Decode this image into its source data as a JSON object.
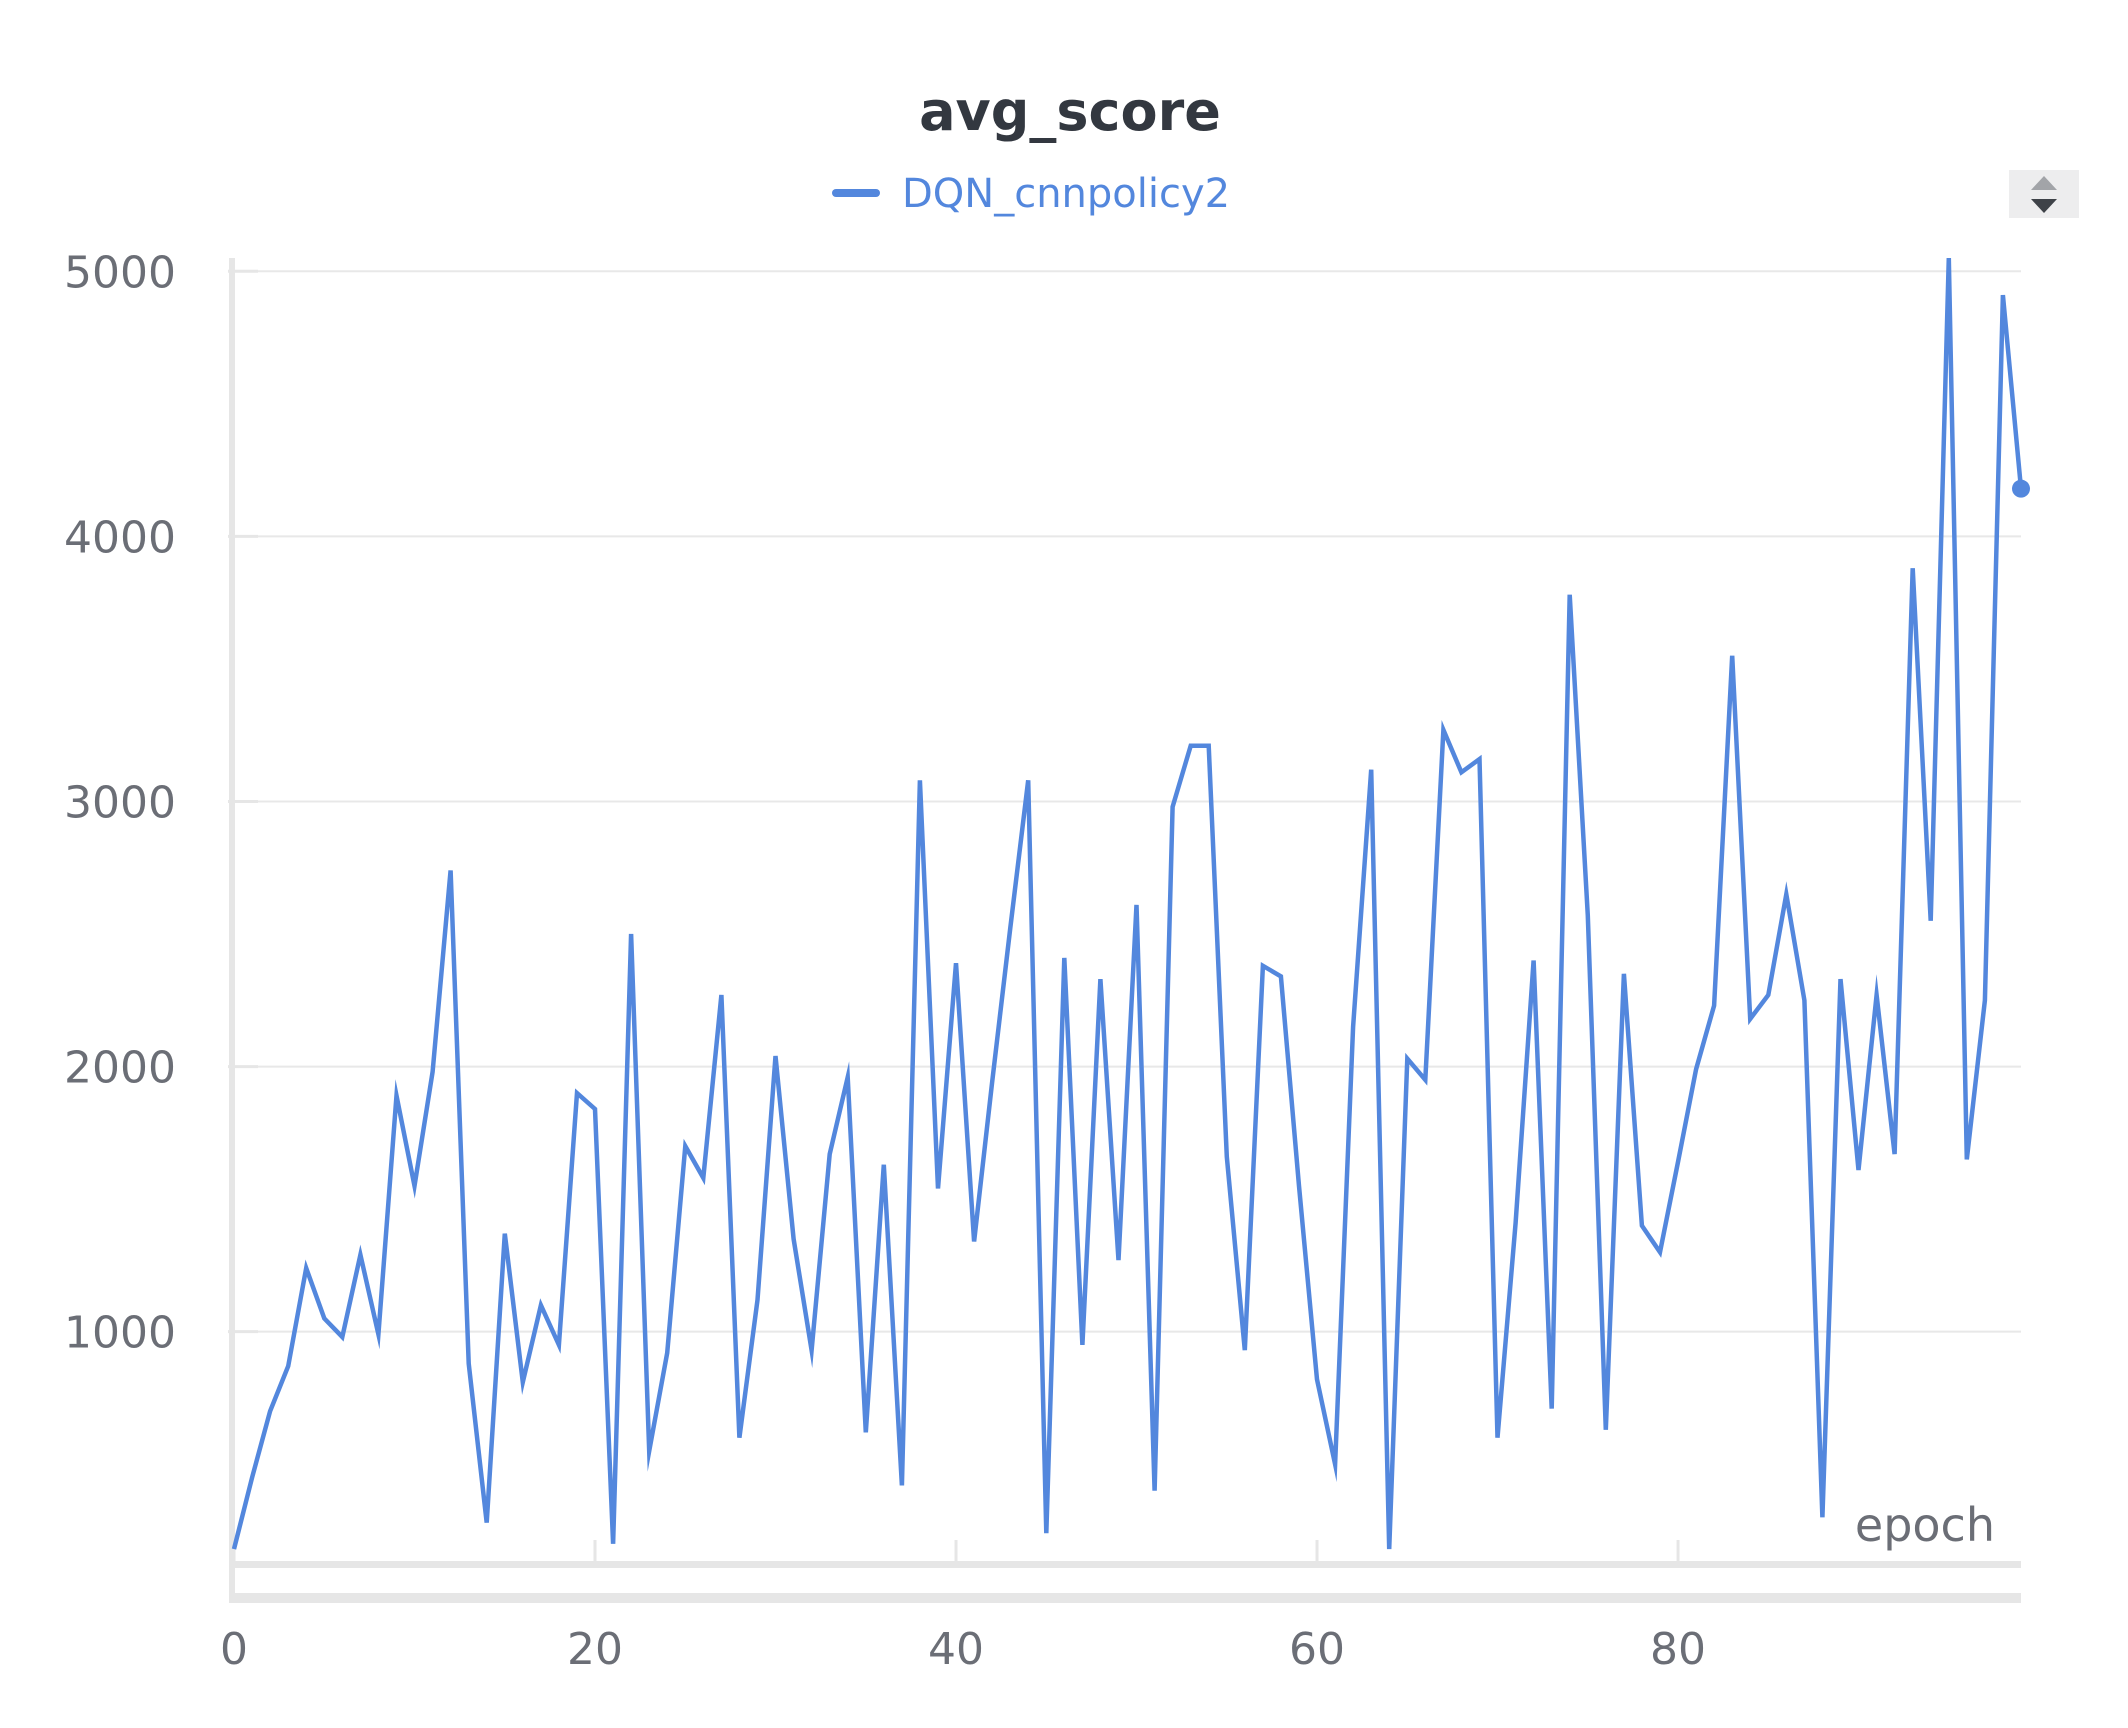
{
  "chart_data": {
    "type": "line",
    "title": "avg_score",
    "xlabel": "epoch",
    "ylabel": "",
    "legend_position": "top-center",
    "grid": true,
    "xlim": [
      0,
      99
    ],
    "ylim": [
      135,
      5050
    ],
    "x_ticks": [
      0,
      20,
      40,
      60,
      80
    ],
    "y_ticks": [
      1000,
      2000,
      3000,
      4000,
      5000
    ],
    "series": [
      {
        "name": "DQN_cnnpolicy2",
        "color": "#5387dd",
        "end_marker": true,
        "x": [
          0,
          1,
          2,
          3,
          4,
          5,
          6,
          7,
          8,
          9,
          10,
          11,
          12,
          13,
          14,
          15,
          16,
          17,
          18,
          19,
          20,
          21,
          22,
          23,
          24,
          25,
          26,
          27,
          28,
          29,
          30,
          31,
          32,
          33,
          34,
          35,
          36,
          37,
          38,
          39,
          40,
          41,
          42,
          43,
          44,
          45,
          46,
          47,
          48,
          49,
          50,
          51,
          52,
          53,
          54,
          55,
          56,
          57,
          58,
          59,
          60,
          61,
          62,
          63,
          64,
          65,
          66,
          67,
          68,
          69,
          70,
          71,
          72,
          73,
          74,
          75,
          76,
          77,
          78,
          79,
          80,
          81,
          82,
          83,
          84,
          85,
          86,
          87,
          88,
          89,
          90,
          91,
          92,
          93,
          94,
          95,
          96,
          97,
          98,
          99
        ],
        "values": [
          180,
          450,
          700,
          870,
          1240,
          1050,
          980,
          1290,
          990,
          1890,
          1550,
          1980,
          2740,
          880,
          280,
          1370,
          810,
          1100,
          950,
          1900,
          1840,
          200,
          2500,
          550,
          920,
          1700,
          1580,
          2270,
          600,
          1120,
          2040,
          1350,
          930,
          1670,
          1960,
          620,
          1630,
          420,
          3080,
          1540,
          2390,
          1340,
          1940,
          2520,
          3080,
          240,
          2410,
          950,
          2330,
          1270,
          2610,
          400,
          2980,
          3210,
          3210,
          1660,
          930,
          2380,
          2340,
          1550,
          820,
          500,
          2150,
          3120,
          180,
          2030,
          1950,
          3270,
          3110,
          3160,
          600,
          1410,
          2400,
          710,
          3780,
          2570,
          630,
          2350,
          1400,
          1300,
          1640,
          1990,
          2230,
          3550,
          2180,
          2270,
          2650,
          2250,
          300,
          2330,
          1610,
          2270,
          1670,
          3880,
          2550,
          5050,
          1650,
          2250,
          4910,
          4180
        ]
      }
    ]
  }
}
